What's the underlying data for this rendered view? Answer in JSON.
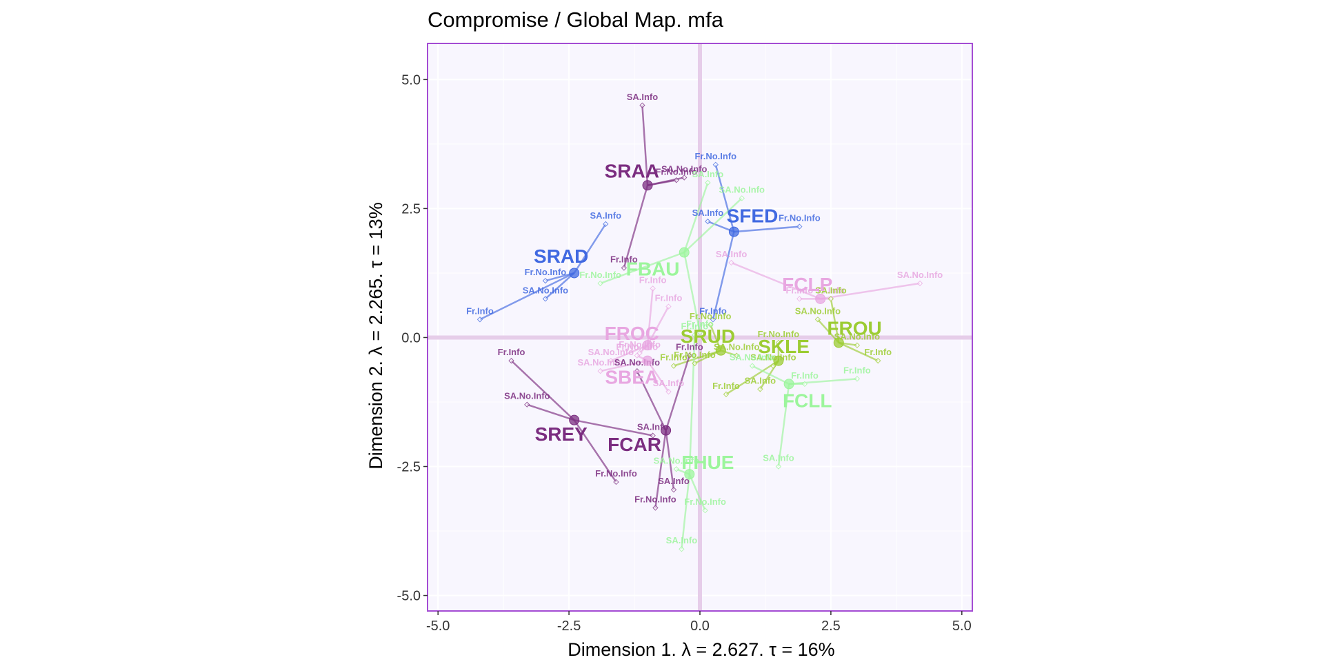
{
  "chart_data": {
    "type": "scatter",
    "title": "Compromise / Global Map. mfa",
    "xlabel": "Dimension 1.   λ = 2.627.  τ = 16%",
    "ylabel": "Dimension 2.   λ = 2.265.  τ = 13%",
    "xlim": [
      -5.2,
      5.2
    ],
    "ylim": [
      -5.3,
      5.7
    ],
    "xticks": [
      -5.0,
      -2.5,
      0.0,
      2.5,
      5.0
    ],
    "yticks": [
      -5.0,
      -2.5,
      0.0,
      2.5,
      5.0
    ],
    "xtick_labels": [
      "-5.0",
      "-2.5",
      "0.0",
      "2.5",
      "5.0"
    ],
    "ytick_labels": [
      "-5.0",
      "-2.5",
      "0.0",
      "2.5",
      "5.0"
    ],
    "grid": true,
    "colors": {
      "panel_bg": "#f8f6fe",
      "panel_border": "#a44cd3",
      "grid": "#ffffff",
      "origin_lines": "#e6cde9"
    },
    "observations": [
      {
        "name": "SRAA",
        "x": -1.0,
        "y": 2.95,
        "color": "#7b2d80",
        "label_dx": -0.3,
        "label_dy": 0.25,
        "partials": [
          {
            "label": "SA.Info",
            "x": -1.1,
            "y": 4.5
          },
          {
            "label": "Fr.No.Info",
            "x": -0.45,
            "y": 3.05
          },
          {
            "label": "SA.No.Info",
            "x": -0.3,
            "y": 3.1
          },
          {
            "label": "Fr.Info",
            "x": -1.45,
            "y": 1.35
          }
        ]
      },
      {
        "name": "SRAD",
        "x": -2.4,
        "y": 1.25,
        "color": "#4169e1",
        "label_dx": -0.25,
        "label_dy": 0.3,
        "partials": [
          {
            "label": "SA.Info",
            "x": -1.8,
            "y": 2.2
          },
          {
            "label": "Fr.No.Info",
            "x": -2.95,
            "y": 1.1
          },
          {
            "label": "SA.No.Info",
            "x": -2.95,
            "y": 0.75
          },
          {
            "label": "Fr.Info",
            "x": -4.2,
            "y": 0.35
          }
        ]
      },
      {
        "name": "SFED",
        "x": 0.65,
        "y": 2.05,
        "color": "#4169e1",
        "label_dx": 0.35,
        "label_dy": 0.28,
        "partials": [
          {
            "label": "Fr.No.Info",
            "x": 0.3,
            "y": 3.35
          },
          {
            "label": "SA.Info",
            "x": 0.15,
            "y": 2.25
          },
          {
            "label": "Fr.No.Info",
            "x": 1.9,
            "y": 2.15
          },
          {
            "label": "Fr.Info",
            "x": 0.25,
            "y": 0.35
          }
        ]
      },
      {
        "name": "FBAU",
        "x": -0.3,
        "y": 1.65,
        "color": "#9cf59c",
        "label_dx": -0.6,
        "label_dy": -0.35,
        "partials": [
          {
            "label": "SA.Info",
            "x": 0.15,
            "y": 3.0
          },
          {
            "label": "SA.No.Info",
            "x": 0.8,
            "y": 2.7
          },
          {
            "label": "Fr.No.Info",
            "x": -1.9,
            "y": 1.05
          },
          {
            "label": "Fr.Info",
            "x": 0.0,
            "y": 0.1
          }
        ]
      },
      {
        "name": "FCLP",
        "x": 2.3,
        "y": 0.75,
        "color": "#e8a7e1",
        "label_dx": -0.25,
        "label_dy": 0.25,
        "partials": [
          {
            "label": "SA.Info",
            "x": 0.6,
            "y": 1.45
          },
          {
            "label": "SA.No.Info",
            "x": 4.2,
            "y": 1.05
          },
          {
            "label": "Fr.Info",
            "x": 2.5,
            "y": 0.75
          },
          {
            "label": "Fr.Info",
            "x": 1.9,
            "y": 0.75
          }
        ]
      },
      {
        "name": "FROU",
        "x": 2.65,
        "y": -0.1,
        "color": "#9ccc33",
        "label_dx": 0.3,
        "label_dy": 0.25,
        "partials": [
          {
            "label": "SA.Info",
            "x": 2.5,
            "y": 0.75
          },
          {
            "label": "SA.No.Info",
            "x": 2.25,
            "y": 0.35
          },
          {
            "label": "SA.No.Info",
            "x": 3.0,
            "y": -0.15
          },
          {
            "label": "Fr.Info",
            "x": 3.4,
            "y": -0.45
          }
        ]
      },
      {
        "name": "SKLE",
        "x": 1.5,
        "y": -0.45,
        "color": "#9ccc33",
        "label_dx": 0.1,
        "label_dy": 0.25,
        "partials": [
          {
            "label": "Fr.No.Info",
            "x": 1.5,
            "y": -0.1
          },
          {
            "label": "SA.No.Info",
            "x": 1.4,
            "y": -0.55
          },
          {
            "label": "SA.Info",
            "x": 1.15,
            "y": -1.0
          },
          {
            "label": "Fr.Info",
            "x": 0.5,
            "y": -1.1
          }
        ]
      },
      {
        "name": "SRUD",
        "x": 0.4,
        "y": -0.25,
        "color": "#9ccc33",
        "label_dx": -0.25,
        "label_dy": 0.25,
        "partials": [
          {
            "label": "Fr.No.Info",
            "x": 0.2,
            "y": 0.25
          },
          {
            "label": "SA.No.Info",
            "x": 0.7,
            "y": -0.35
          },
          {
            "label": "Fr.No.Info",
            "x": -0.1,
            "y": -0.5
          },
          {
            "label": "Fr.Info",
            "x": -0.5,
            "y": -0.55
          }
        ]
      },
      {
        "name": "FCLL",
        "x": 1.7,
        "y": -0.9,
        "color": "#9cf59c",
        "label_dx": 0.35,
        "label_dy": -0.35,
        "partials": [
          {
            "label": "SA.No.Info",
            "x": 1.0,
            "y": -0.55
          },
          {
            "label": "Fr.Info",
            "x": 2.0,
            "y": -0.9
          },
          {
            "label": "Fr.Info",
            "x": 3.0,
            "y": -0.8
          },
          {
            "label": "SA.Info",
            "x": 1.5,
            "y": -2.5
          }
        ]
      },
      {
        "name": "FROC",
        "x": -1.0,
        "y": -0.15,
        "color": "#e8a7e1",
        "label_dx": -0.3,
        "label_dy": 0.2,
        "partials": [
          {
            "label": "Fr.Info",
            "x": -0.9,
            "y": 0.95
          },
          {
            "label": "Fr.Info",
            "x": -0.6,
            "y": 0.6
          },
          {
            "label": "Fr.No.Info",
            "x": -1.15,
            "y": -0.3
          },
          {
            "label": "SA.No.Info",
            "x": -1.7,
            "y": -0.45
          }
        ]
      },
      {
        "name": "SBEA",
        "x": -1.0,
        "y": -0.45,
        "color": "#e8a7e1",
        "label_dx": -0.3,
        "label_dy": -0.35,
        "partials": [
          {
            "label": "Fr.No.Info",
            "x": -1.2,
            "y": -0.35
          },
          {
            "label": "SA.Info",
            "x": -0.6,
            "y": -1.05
          },
          {
            "label": "SA.No.Info",
            "x": -1.9,
            "y": -0.65
          }
        ]
      },
      {
        "name": "SREY",
        "x": -2.4,
        "y": -1.6,
        "color": "#7b2d80",
        "label_dx": -0.25,
        "label_dy": -0.3,
        "partials": [
          {
            "label": "Fr.Info",
            "x": -3.6,
            "y": -0.45
          },
          {
            "label": "SA.No.Info",
            "x": -3.3,
            "y": -1.3
          },
          {
            "label": "Fr.No.Info",
            "x": -1.6,
            "y": -2.8
          },
          {
            "label": "SA.Info",
            "x": -0.9,
            "y": -1.9
          }
        ]
      },
      {
        "name": "FCAR",
        "x": -0.65,
        "y": -1.8,
        "color": "#7b2d80",
        "label_dx": -0.6,
        "label_dy": -0.3,
        "partials": [
          {
            "label": "SA.No.Info",
            "x": -1.2,
            "y": -0.65
          },
          {
            "label": "SA.Info",
            "x": -0.5,
            "y": -2.95
          },
          {
            "label": "Fr.No.Info",
            "x": -0.85,
            "y": -3.3
          },
          {
            "label": "Fr.Info",
            "x": -0.2,
            "y": -0.35
          }
        ]
      },
      {
        "name": "FHUE",
        "x": -0.2,
        "y": -2.65,
        "color": "#9cf59c",
        "label_dx": 0.35,
        "label_dy": 0.2,
        "partials": [
          {
            "label": "SA.No.Info",
            "x": -0.45,
            "y": -2.55
          },
          {
            "label": "Fr.No.Info",
            "x": 0.1,
            "y": -3.35
          },
          {
            "label": "SA.Info",
            "x": -0.35,
            "y": -4.1
          },
          {
            "label": "Fr.Info",
            "x": -0.1,
            "y": 0.05
          }
        ]
      }
    ]
  }
}
